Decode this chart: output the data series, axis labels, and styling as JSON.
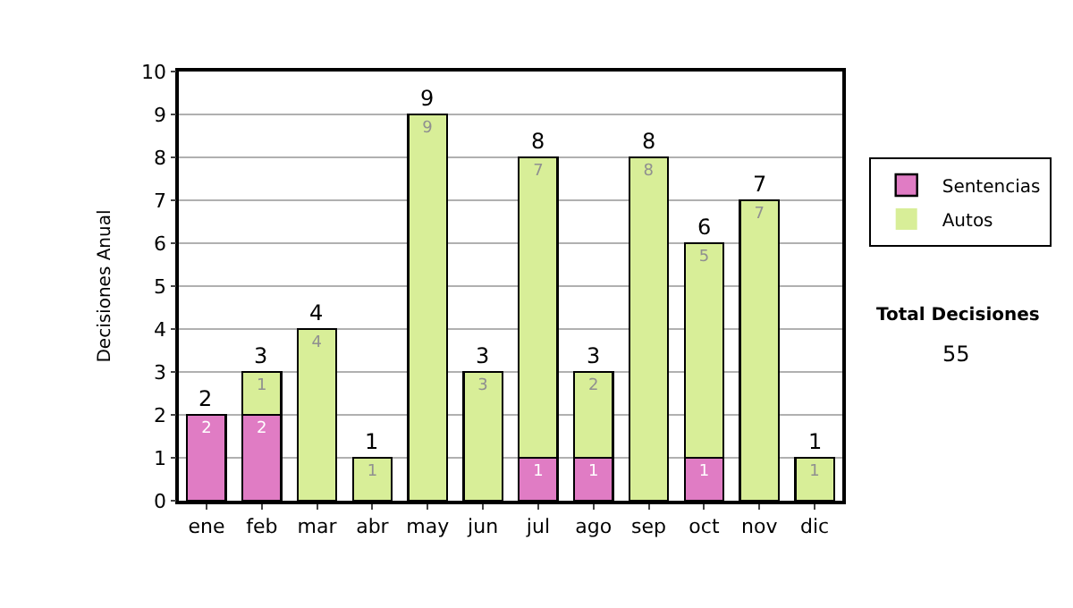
{
  "chart_data": {
    "type": "bar",
    "stacked": true,
    "ylabel": "Decisiones Anual",
    "categories": [
      "ene",
      "feb",
      "mar",
      "abr",
      "may",
      "jun",
      "jul",
      "ago",
      "sep",
      "oct",
      "nov",
      "dic"
    ],
    "series": [
      {
        "name": "Sentencias",
        "color": "#e07cc4",
        "values": [
          2,
          2,
          0,
          0,
          0,
          0,
          1,
          1,
          0,
          1,
          0,
          0
        ],
        "value_labels": [
          "2",
          "2",
          null,
          null,
          null,
          null,
          "1",
          "1",
          null,
          "1",
          null,
          null
        ]
      },
      {
        "name": "Autos",
        "color": "#d8ee98",
        "values": [
          0,
          1,
          4,
          1,
          9,
          3,
          7,
          2,
          8,
          5,
          7,
          1
        ],
        "value_labels": [
          null,
          "1",
          "4",
          "1",
          "9",
          "3",
          "7",
          "2",
          "8",
          "5",
          "7",
          "1"
        ]
      }
    ],
    "totals": [
      "2",
      "3",
      "4",
      "1",
      "9",
      "3",
      "8",
      "3",
      "8",
      "6",
      "7",
      "1"
    ],
    "ylim": [
      0,
      10
    ],
    "yticks": [
      0,
      1,
      2,
      3,
      4,
      5,
      6,
      7,
      8,
      9,
      10
    ],
    "grid": "y",
    "legend": "right",
    "annotations": [
      "Total Decisiones",
      "55"
    ]
  }
}
